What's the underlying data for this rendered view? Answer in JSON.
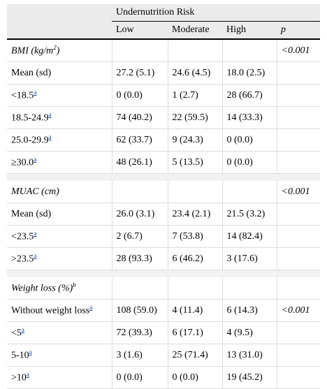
{
  "header": {
    "group_title": "Undernutrition Risk",
    "columns": [
      "Low",
      "Moderate",
      "High",
      "p"
    ]
  },
  "sections": [
    {
      "label": "BMI (kg/m",
      "label_sup": "2",
      "label_end": ")",
      "p": "<0.001",
      "rows": [
        {
          "label": "Mean (sd)",
          "fn": "",
          "values": [
            "27.2 (5.1)",
            "24.6 (4.5)",
            "18.0 (2.5)"
          ],
          "p": ""
        },
        {
          "label": "<18.5",
          "fn": "a",
          "values": [
            "0 (0.0)",
            "1 (2.7)",
            "28 (66.7)"
          ],
          "p": ""
        },
        {
          "label": "18.5-24.9",
          "fn": "a",
          "values": [
            "74 (40.2)",
            "22 (59.5)",
            "14 (33.3)"
          ],
          "p": ""
        },
        {
          "label": "25.0-29.9",
          "fn": "a",
          "values": [
            "62 (33.7)",
            "9 (24.3)",
            "0 (0.0)"
          ],
          "p": ""
        },
        {
          "label": "≥30.0",
          "fn": "a",
          "values": [
            "48 (26.1)",
            "5 (13.5)",
            "0 (0.0)"
          ],
          "p": ""
        }
      ]
    },
    {
      "label": "MUAC (cm)",
      "label_sup": "",
      "label_end": "",
      "p": "<0.001",
      "rows": [
        {
          "label": "Mean (sd)",
          "fn": "",
          "values": [
            "26.0 (3.1)",
            "23.4 (2.1)",
            "21.5 (3.2)"
          ],
          "p": ""
        },
        {
          "label": "<23.5",
          "fn": "a",
          "values": [
            "2 (6.7)",
            "7 (53.8)",
            "14 (82.4)"
          ],
          "p": ""
        },
        {
          "label": ">23.5",
          "fn": "a",
          "values": [
            "28 (93.3)",
            "6 (46.2)",
            "3 (17.6)"
          ],
          "p": ""
        }
      ]
    },
    {
      "label": "Weight loss (%)",
      "label_sup": "b",
      "label_end": "",
      "p": "",
      "rows": [
        {
          "label": "Without weight loss",
          "fn": "a",
          "values": [
            "108 (59.0)",
            "4 (11.4)",
            "6 (14.3)"
          ],
          "p": "<0.001"
        },
        {
          "label": "<5",
          "fn": "a",
          "values": [
            "72 (39.3)",
            "6 (17.1)",
            "4 (9.5)"
          ],
          "p": ""
        },
        {
          "label": "5-10",
          "fn": "a",
          "values": [
            "3 (1.6)",
            "25 (71.4)",
            "13 (31.0)"
          ],
          "p": ""
        },
        {
          "label": ">10",
          "fn": "a",
          "values": [
            "0 (0.0)",
            "0 (0.0)",
            "19 (45.2)"
          ],
          "p": ""
        }
      ]
    }
  ]
}
